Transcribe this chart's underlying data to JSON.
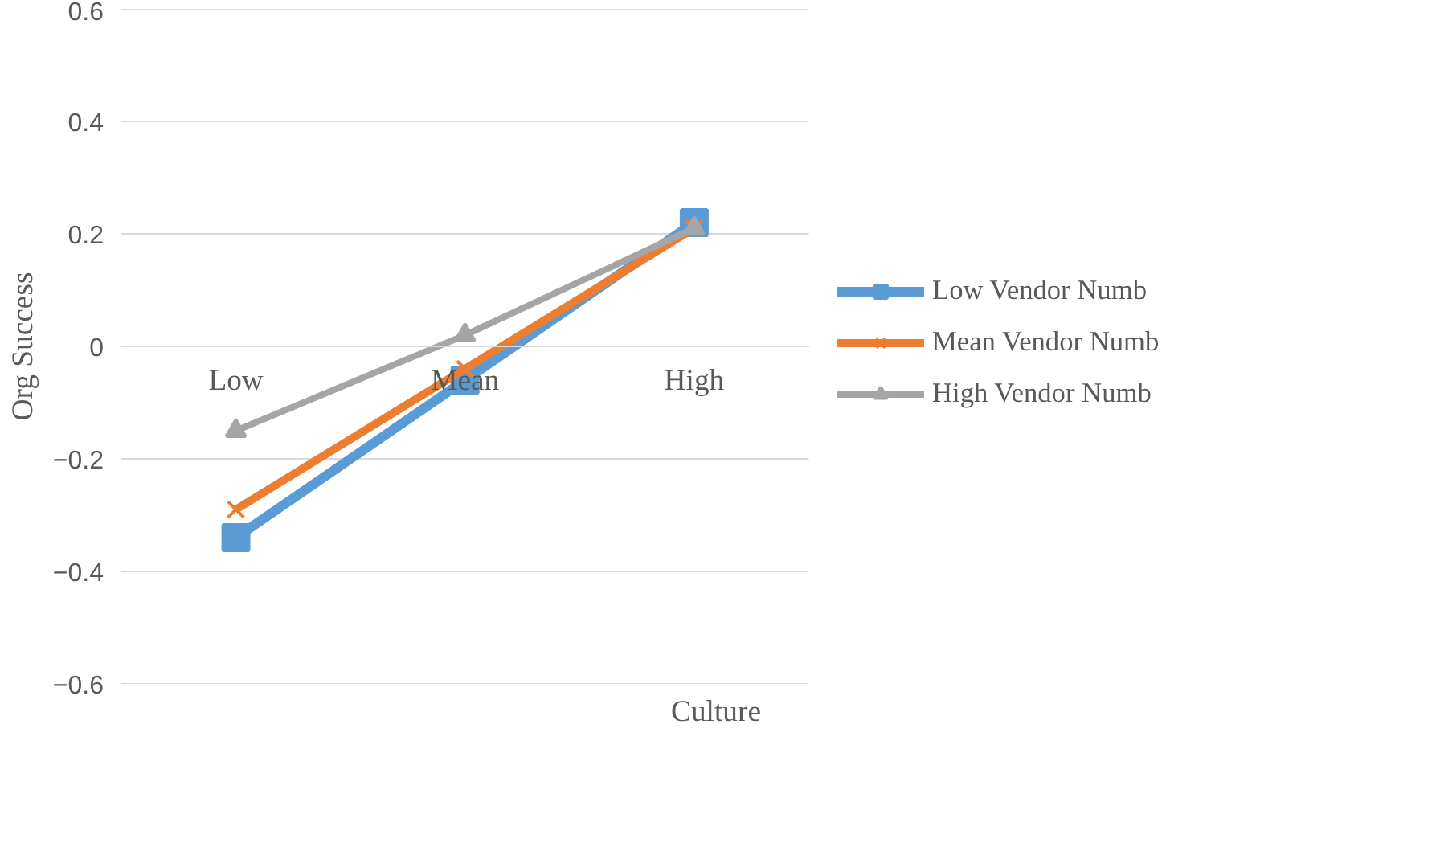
{
  "chart_data": {
    "type": "line",
    "xlabel": "Culture",
    "ylabel": "Org Success",
    "categories": [
      "Low",
      "Mean",
      "High"
    ],
    "series": [
      {
        "name": "Low Vendor Numb",
        "color": "#5b9bd5",
        "marker": "square",
        "values": [
          -0.34,
          -0.06,
          0.22
        ]
      },
      {
        "name": "Mean Vendor Numb",
        "color": "#ed7d31",
        "marker": "cross",
        "values": [
          -0.29,
          -0.04,
          0.21
        ]
      },
      {
        "name": "High Vendor Numb",
        "color": "#a5a5a5",
        "marker": "triangle",
        "values": [
          -0.15,
          0.02,
          0.21
        ]
      }
    ],
    "ylim": [
      -0.6,
      0.6
    ],
    "yticks": [
      -0.6,
      -0.4,
      -0.2,
      0,
      0.2,
      0.4,
      0.6
    ],
    "grid": "y",
    "legend": "right"
  }
}
